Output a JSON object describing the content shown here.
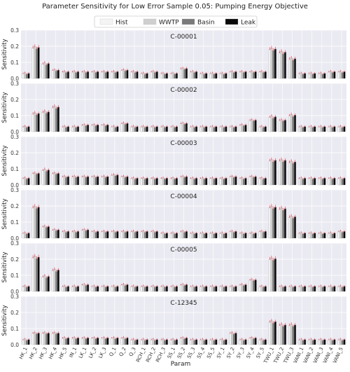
{
  "chart_data": {
    "type": "bar",
    "title": "Parameter Sensitivity for Low Error Sample 0.05: Pumping Energy Objective",
    "xlabel": "Param",
    "ylabel": "Sensitivity",
    "ylim": [
      0,
      0.3
    ],
    "yticks": [
      "0.0",
      "0.1",
      "0.2",
      "0.3"
    ],
    "legend_position": "top-center",
    "grid": true,
    "legend": [
      {
        "name": "Hist",
        "color": "#f4f4f4"
      },
      {
        "name": "WWTP",
        "color": "#cfcfcf"
      },
      {
        "name": "Basin",
        "color": "#7a7a7a"
      },
      {
        "name": "Leak",
        "color": "#0a0a0a"
      }
    ],
    "categories": [
      "HK_1",
      "HK_2",
      "HK_3",
      "HK_4",
      "HK_5",
      "IN_1",
      "LK_1",
      "LK_2",
      "LK_3",
      "Q_1",
      "Q_2",
      "Q_3",
      "RCH_1",
      "RCH_2",
      "RCH_3",
      "SS_1",
      "SS_2",
      "SS_3",
      "SS_4",
      "SS_5",
      "SY_1",
      "SY_2",
      "SY_3",
      "SY_4",
      "SY_5",
      "TWU_1",
      "TWU_2",
      "TWU_3",
      "VANI_1",
      "VANI_2",
      "VANI_3",
      "VANI_4",
      "VANI_5"
    ],
    "tick_labels": [
      "HK_1",
      "HK_2",
      "HK_3",
      "HK_4",
      "HK_5",
      "IN_1",
      "LK_1",
      "LK_2",
      "LK_3",
      "Q_1",
      "Q_2",
      "Q_3",
      "RCH_1",
      "RCH_2",
      "RCH_3",
      "SS_1",
      "SS_2",
      "SS_3",
      "SS_4",
      "SS_5",
      "SY_1",
      "SY_2",
      "SY_3",
      "SY_4",
      "SY_5",
      "TWU_1",
      "TWU_2",
      "TWU_3",
      "VANI_1",
      "VANI_2",
      "VANI_3",
      "VANI_4",
      "VANI_5"
    ],
    "panels": [
      {
        "label": "C-00001",
        "values": [
          0.03,
          0.19,
          0.09,
          0.05,
          0.04,
          0.04,
          0.04,
          0.04,
          0.04,
          0.04,
          0.05,
          0.04,
          0.03,
          0.04,
          0.03,
          0.03,
          0.06,
          0.04,
          0.03,
          0.03,
          0.03,
          0.04,
          0.04,
          0.04,
          0.04,
          0.18,
          0.16,
          0.12,
          0.03,
          0.03,
          0.03,
          0.04,
          0.04
        ]
      },
      {
        "label": "C-00002",
        "values": [
          0.03,
          0.11,
          0.12,
          0.15,
          0.03,
          0.03,
          0.04,
          0.04,
          0.04,
          0.03,
          0.05,
          0.03,
          0.03,
          0.03,
          0.03,
          0.03,
          0.05,
          0.03,
          0.03,
          0.03,
          0.03,
          0.03,
          0.04,
          0.07,
          0.03,
          0.09,
          0.07,
          0.1,
          0.03,
          0.03,
          0.03,
          0.03,
          0.03
        ]
      },
      {
        "label": "C-00003",
        "values": [
          0.04,
          0.07,
          0.09,
          0.07,
          0.05,
          0.05,
          0.05,
          0.05,
          0.05,
          0.06,
          0.05,
          0.04,
          0.04,
          0.04,
          0.04,
          0.04,
          0.05,
          0.04,
          0.04,
          0.04,
          0.04,
          0.05,
          0.04,
          0.05,
          0.04,
          0.15,
          0.15,
          0.14,
          0.04,
          0.04,
          0.04,
          0.04,
          0.04
        ]
      },
      {
        "label": "C-00004",
        "values": [
          0.03,
          0.19,
          0.07,
          0.05,
          0.04,
          0.04,
          0.05,
          0.04,
          0.04,
          0.04,
          0.04,
          0.04,
          0.04,
          0.04,
          0.03,
          0.03,
          0.04,
          0.03,
          0.03,
          0.03,
          0.03,
          0.04,
          0.03,
          0.03,
          0.04,
          0.19,
          0.18,
          0.13,
          0.03,
          0.03,
          0.03,
          0.03,
          0.04
        ]
      },
      {
        "label": "C-00005",
        "values": [
          0.03,
          0.21,
          0.09,
          0.13,
          0.03,
          0.03,
          0.04,
          0.03,
          0.03,
          0.03,
          0.04,
          0.03,
          0.03,
          0.03,
          0.03,
          0.03,
          0.04,
          0.03,
          0.03,
          0.03,
          0.03,
          0.03,
          0.04,
          0.07,
          0.03,
          0.2,
          0.03,
          0.03,
          0.03,
          0.03,
          0.03,
          0.03,
          0.03
        ]
      },
      {
        "label": "C-12345",
        "values": [
          0.03,
          0.07,
          0.07,
          0.07,
          0.04,
          0.04,
          0.04,
          0.04,
          0.04,
          0.04,
          0.04,
          0.03,
          0.03,
          0.03,
          0.03,
          0.03,
          0.04,
          0.03,
          0.03,
          0.03,
          0.03,
          0.07,
          0.03,
          0.04,
          0.03,
          0.14,
          0.12,
          0.12,
          0.03,
          0.03,
          0.03,
          0.03,
          0.03
        ]
      }
    ]
  }
}
